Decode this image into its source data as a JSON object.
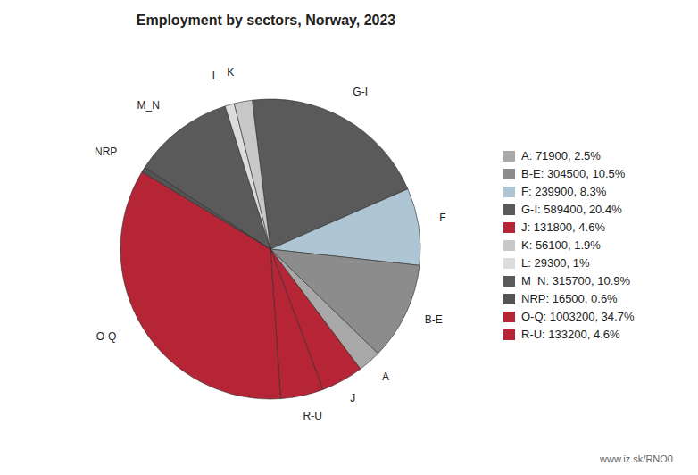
{
  "chart_data": {
    "type": "pie",
    "title": "Employment by sectors, Norway, 2023",
    "categories": [
      "G-I",
      "F",
      "B-E",
      "A",
      "J",
      "R-U",
      "O-Q",
      "NRP",
      "M_N",
      "L",
      "K"
    ],
    "values": [
      589400,
      239900,
      304500,
      71900,
      131800,
      133200,
      1003200,
      16500,
      315700,
      29300,
      56100
    ],
    "colors": [
      "#5a5a5a",
      "#aec6d4",
      "#8c8c8c",
      "#a8a8a8",
      "#b52535",
      "#b52535",
      "#b52535",
      "#545454",
      "#5a5a5a",
      "#dcdcdc",
      "#c8c8c8"
    ],
    "legend": "right",
    "legend_entries": [
      {
        "category": "A",
        "label": "A: 71900, 2.5%"
      },
      {
        "category": "B-E",
        "label": "B-E: 304500, 10.5%"
      },
      {
        "category": "F",
        "label": "F: 239900, 8.3%"
      },
      {
        "category": "G-I",
        "label": "G-I: 589400, 20.4%"
      },
      {
        "category": "J",
        "label": "J: 131800, 4.6%"
      },
      {
        "category": "K",
        "label": "K: 56100, 1.9%"
      },
      {
        "category": "L",
        "label": "L: 29300, 1%"
      },
      {
        "category": "M_N",
        "label": "M_N: 315700, 10.9%"
      },
      {
        "category": "NRP",
        "label": "NRP: 16500, 0.6%"
      },
      {
        "category": "O-Q",
        "label": "O-Q: 1003200, 34.7%"
      },
      {
        "category": "R-U",
        "label": "R-U: 133200, 4.6%"
      }
    ],
    "annotations": [
      "www.iz.sk/RNO0"
    ]
  }
}
